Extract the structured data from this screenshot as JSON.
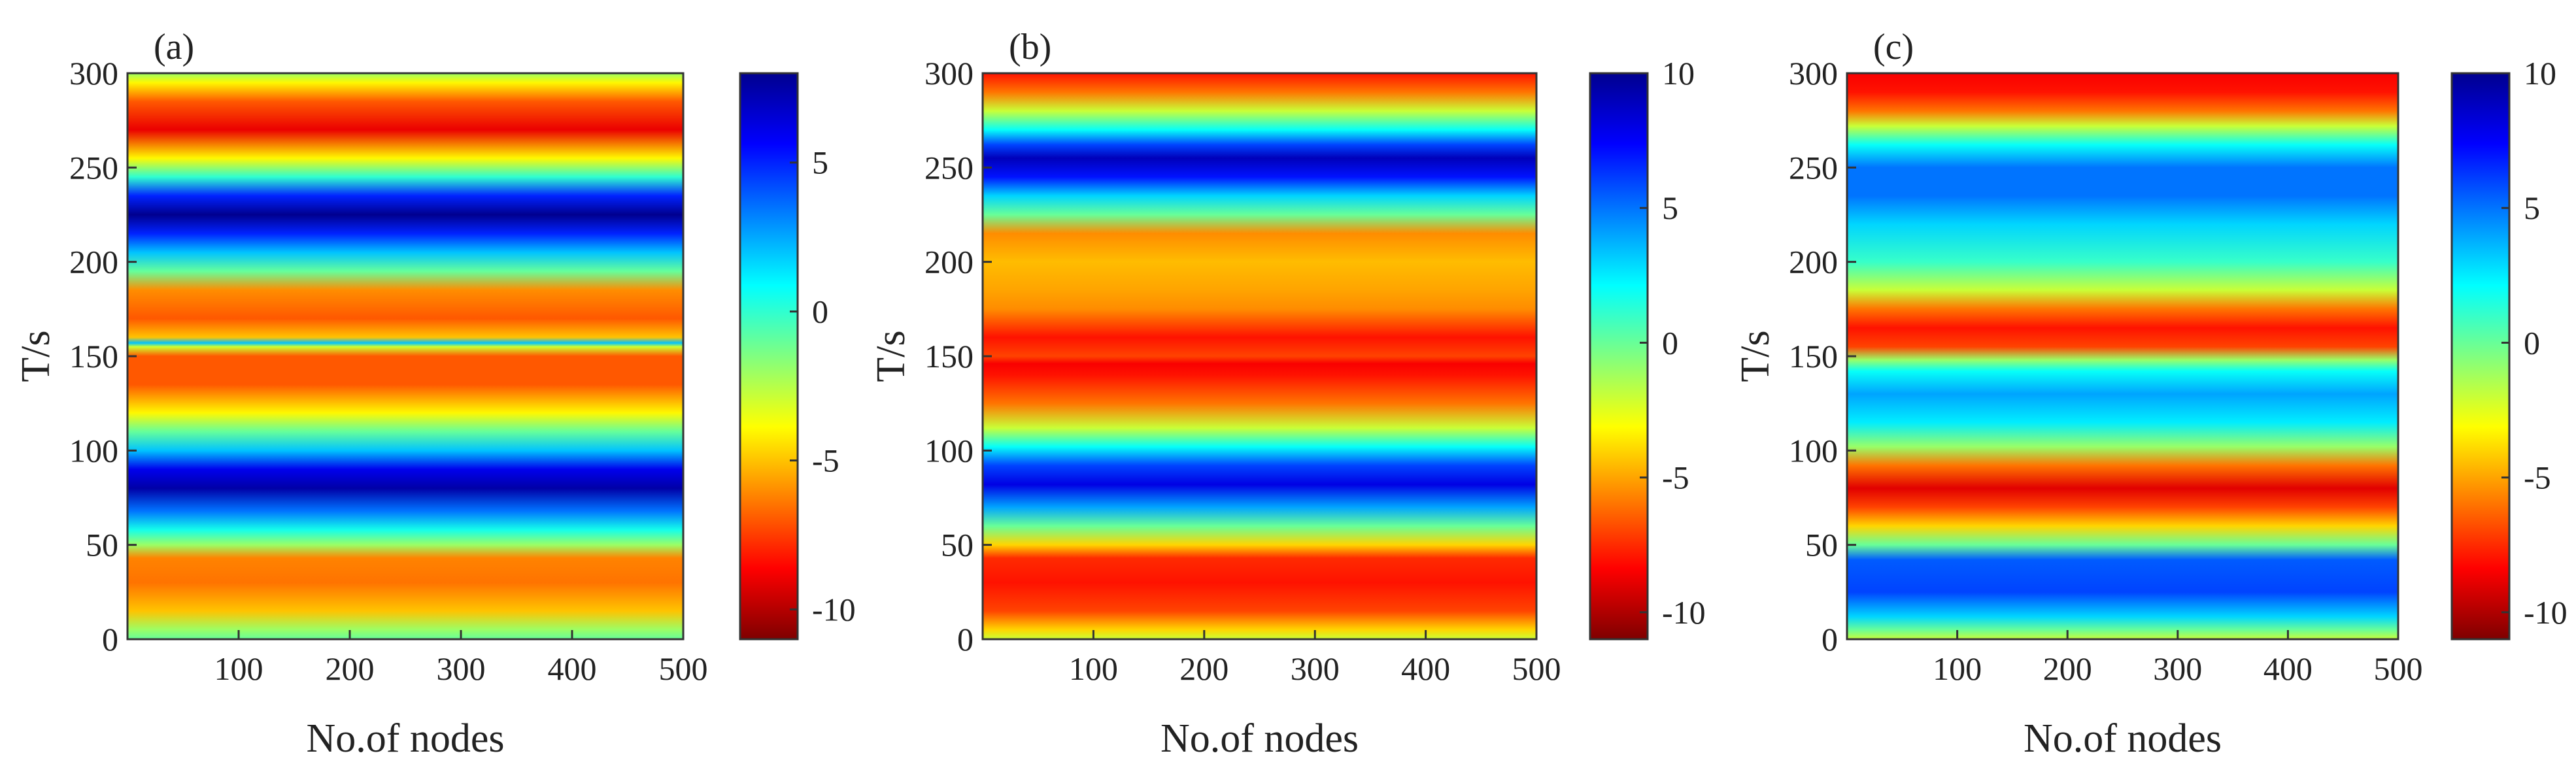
{
  "figure": {
    "colorscale": [
      "#7f0000",
      "#ff0000",
      "#ff8000",
      "#ffff00",
      "#80ff80",
      "#00ffff",
      "#0080ff",
      "#0000ff",
      "#00008f"
    ],
    "axis_color": "#333333"
  },
  "chart_data": [
    {
      "type": "heatmap",
      "panel_label": "(a)",
      "xlabel": "No.of nodes",
      "ylabel": "T/s",
      "xlim": [
        0,
        500
      ],
      "ylim": [
        0,
        300
      ],
      "xticks": [
        100,
        200,
        300,
        400,
        500
      ],
      "yticks": [
        0,
        50,
        100,
        150,
        200,
        250,
        300
      ],
      "colorbar": {
        "min": -11,
        "max": 8,
        "ticks": [
          5,
          0,
          -5,
          -10
        ]
      },
      "profile": [
        [
          0,
          -1
        ],
        [
          5,
          -2
        ],
        [
          15,
          -5
        ],
        [
          30,
          -6.5
        ],
        [
          43,
          -6.2
        ],
        [
          50,
          -2
        ],
        [
          58,
          0.5
        ],
        [
          68,
          3.5
        ],
        [
          80,
          7.5
        ],
        [
          90,
          6
        ],
        [
          100,
          2
        ],
        [
          110,
          -1
        ],
        [
          120,
          -4
        ],
        [
          135,
          -7
        ],
        [
          150,
          -7
        ],
        [
          155,
          -3
        ],
        [
          157,
          2
        ],
        [
          160,
          -5
        ],
        [
          170,
          -7
        ],
        [
          185,
          -6
        ],
        [
          195,
          -1
        ],
        [
          205,
          2
        ],
        [
          215,
          5
        ],
        [
          225,
          8
        ],
        [
          235,
          5
        ],
        [
          245,
          0
        ],
        [
          255,
          -4
        ],
        [
          270,
          -9
        ],
        [
          285,
          -7
        ],
        [
          295,
          -4
        ],
        [
          300,
          -2
        ]
      ]
    },
    {
      "type": "heatmap",
      "panel_label": "(b)",
      "xlabel": "No.of nodes",
      "ylabel": "T/s",
      "xlim": [
        0,
        500
      ],
      "ylim": [
        0,
        300
      ],
      "xticks": [
        100,
        200,
        300,
        400,
        500
      ],
      "yticks": [
        0,
        50,
        100,
        150,
        200,
        250,
        300
      ],
      "colorbar": {
        "min": -11,
        "max": 10,
        "ticks": [
          10,
          5,
          0,
          -5,
          -10
        ]
      },
      "profile": [
        [
          0,
          -2
        ],
        [
          5,
          -4
        ],
        [
          15,
          -7
        ],
        [
          30,
          -8
        ],
        [
          43,
          -7.5
        ],
        [
          50,
          -4
        ],
        [
          60,
          0
        ],
        [
          70,
          4
        ],
        [
          82,
          8
        ],
        [
          92,
          6
        ],
        [
          102,
          2
        ],
        [
          112,
          -2
        ],
        [
          125,
          -6
        ],
        [
          140,
          -8
        ],
        [
          146,
          -8.5
        ],
        [
          150,
          -7
        ],
        [
          160,
          -8
        ],
        [
          175,
          -5.5
        ],
        [
          185,
          -5
        ],
        [
          200,
          -4.5
        ],
        [
          215,
          -5.5
        ],
        [
          225,
          0
        ],
        [
          235,
          3
        ],
        [
          245,
          7
        ],
        [
          255,
          9
        ],
        [
          262,
          6
        ],
        [
          270,
          2
        ],
        [
          280,
          -2
        ],
        [
          290,
          -6
        ],
        [
          300,
          -8
        ]
      ]
    },
    {
      "type": "heatmap",
      "panel_label": "(c)",
      "xlabel": "No.of nodes",
      "ylabel": "T/s",
      "xlim": [
        0,
        500
      ],
      "ylim": [
        0,
        300
      ],
      "xticks": [
        100,
        200,
        300,
        400,
        500
      ],
      "yticks": [
        0,
        50,
        100,
        150,
        200,
        250,
        300
      ],
      "colorbar": {
        "min": -11,
        "max": 10,
        "ticks": [
          10,
          5,
          0,
          -5,
          -10
        ]
      },
      "profile": [
        [
          0,
          -2
        ],
        [
          5,
          0
        ],
        [
          12,
          3
        ],
        [
          25,
          6
        ],
        [
          42,
          5.5
        ],
        [
          50,
          0
        ],
        [
          60,
          -4
        ],
        [
          70,
          -7
        ],
        [
          80,
          -9
        ],
        [
          92,
          -6
        ],
        [
          102,
          -1
        ],
        [
          115,
          2.5
        ],
        [
          130,
          4
        ],
        [
          142,
          2
        ],
        [
          148,
          -1
        ],
        [
          155,
          -7
        ],
        [
          165,
          -8
        ],
        [
          175,
          -6
        ],
        [
          185,
          -2
        ],
        [
          200,
          1
        ],
        [
          220,
          3
        ],
        [
          235,
          5
        ],
        [
          250,
          5
        ],
        [
          262,
          2
        ],
        [
          272,
          -2
        ],
        [
          280,
          -6
        ],
        [
          290,
          -8
        ],
        [
          300,
          -8.5
        ]
      ]
    }
  ]
}
